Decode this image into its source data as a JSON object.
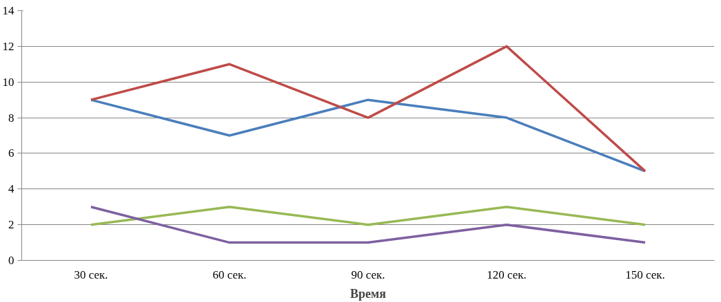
{
  "chart_data": {
    "type": "line",
    "xlabel": "Время",
    "categories": [
      "30 сек.",
      "60 сек.",
      "90 сек.",
      "120 сек.",
      "150 сек."
    ],
    "series": [
      {
        "color": "#4a7ebb",
        "values": [
          9,
          7,
          9,
          8,
          5
        ]
      },
      {
        "color": "#be4b48",
        "values": [
          9,
          11,
          8,
          12,
          5
        ]
      },
      {
        "color": "#98b954",
        "values": [
          2,
          3,
          2,
          3,
          2
        ]
      },
      {
        "color": "#7d60a0",
        "values": [
          3,
          1,
          1,
          2,
          1
        ]
      }
    ],
    "ylim": [
      0,
      14
    ],
    "yticks": [
      0,
      2,
      4,
      6,
      8,
      10,
      12,
      14
    ],
    "grid": "y",
    "marker": "none",
    "line_style": "solid"
  }
}
